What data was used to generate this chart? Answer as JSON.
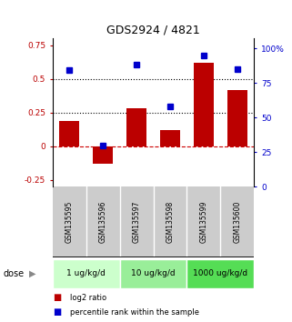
{
  "title": "GDS2924 / 4821",
  "samples": [
    "GSM135595",
    "GSM135596",
    "GSM135597",
    "GSM135598",
    "GSM135599",
    "GSM135600"
  ],
  "log2_ratio": [
    0.19,
    -0.13,
    0.28,
    0.12,
    0.62,
    0.42
  ],
  "percentile_rank": [
    84,
    30,
    88,
    58,
    95,
    85
  ],
  "dose_groups": [
    {
      "label": "1 ug/kg/d",
      "start": 0,
      "end": 2,
      "color": "#ccffcc"
    },
    {
      "label": "10 ug/kg/d",
      "start": 2,
      "end": 4,
      "color": "#99ee99"
    },
    {
      "label": "1000 ug/kg/d",
      "start": 4,
      "end": 6,
      "color": "#55dd55"
    }
  ],
  "bar_color": "#bb0000",
  "dot_color": "#0000cc",
  "left_ylim": [
    -0.3,
    0.8
  ],
  "right_ylim": [
    0,
    107
  ],
  "left_yticks": [
    -0.25,
    0,
    0.25,
    0.5,
    0.75
  ],
  "right_yticks": [
    0,
    25,
    50,
    75,
    100
  ],
  "left_ytick_labels": [
    "-0.25",
    "0",
    "0.25",
    "0.5",
    "0.75"
  ],
  "right_ytick_labels": [
    "0",
    "25",
    "50",
    "75",
    "100%"
  ],
  "hlines": [
    0.5,
    0.25
  ],
  "zero_line_color": "#cc0000",
  "hline_color": "black",
  "legend_bar_label": "log2 ratio",
  "legend_dot_label": "percentile rank within the sample",
  "dose_label": "dose",
  "background_color": "#ffffff",
  "sample_box_color": "#cccccc",
  "dose_box_colors": [
    "#ccffcc",
    "#99ee99",
    "#55dd55"
  ]
}
